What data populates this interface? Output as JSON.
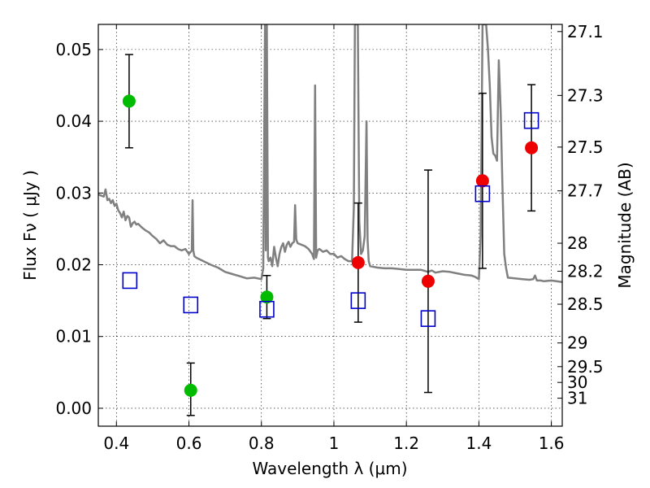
{
  "chart_data": {
    "type": "scatter",
    "xlabel": "Wavelength  λ (μm)",
    "ylabel": "Flux  Fν  ( μJy )",
    "ylabel_right": "Magnitude (AB)",
    "xlim": [
      0.35,
      1.63
    ],
    "ylim": [
      -0.0025,
      0.0535
    ],
    "grid": true,
    "x_ticks": [
      0.4,
      0.6,
      0.8,
      1.0,
      1.2,
      1.4,
      1.6
    ],
    "x_tick_labels": [
      "0.4",
      "0.6",
      "0.8",
      "1",
      "1.2",
      "1.4",
      "1.6"
    ],
    "y_ticks": [
      0.0,
      0.01,
      0.02,
      0.03,
      0.04,
      0.05
    ],
    "y_tick_labels": [
      "0.00",
      "0.01",
      "0.02",
      "0.03",
      "0.04",
      "0.05"
    ],
    "right_ticks": [
      {
        "label": "27.1",
        "flux": 0.0525
      },
      {
        "label": "27.3",
        "flux": 0.0436
      },
      {
        "label": "27.5",
        "flux": 0.0364
      },
      {
        "label": "27.7",
        "flux": 0.0303
      },
      {
        "label": "28",
        "flux": 0.023
      },
      {
        "label": "28.2",
        "flux": 0.0191
      },
      {
        "label": "28.5",
        "flux": 0.0145
      },
      {
        "label": "29",
        "flux": 0.0091
      },
      {
        "label": "29.5",
        "flux": 0.0058
      },
      {
        "label": "30",
        "flux": 0.0036
      },
      {
        "label": "31",
        "flux": 0.0014
      }
    ],
    "series": [
      {
        "color": "#00bb00",
        "marker": "circle",
        "points": [
          {
            "x": 0.435,
            "y": 0.0428,
            "err_lo": 0.0065,
            "err_hi": 0.0065
          },
          {
            "x": 0.605,
            "y": 0.0025,
            "err_lo": 0.0035,
            "err_hi": 0.0038
          },
          {
            "x": 0.815,
            "y": 0.0155,
            "err_lo": 0.003,
            "err_hi": 0.003
          }
        ]
      },
      {
        "color": "#ee0000",
        "marker": "circle",
        "points": [
          {
            "x": 1.067,
            "y": 0.0203,
            "err_lo": 0.0083,
            "err_hi": 0.0083
          },
          {
            "x": 1.26,
            "y": 0.0177,
            "err_lo": 0.0155,
            "err_hi": 0.0155
          },
          {
            "x": 1.41,
            "y": 0.0317,
            "err_lo": 0.0122,
            "err_hi": 0.0122
          },
          {
            "x": 1.545,
            "y": 0.0363,
            "err_lo": 0.0088,
            "err_hi": 0.0088
          }
        ]
      },
      {
        "color": "#0000cc",
        "marker": "open-square",
        "points": [
          {
            "x": 0.437,
            "y": 0.0178
          },
          {
            "x": 0.605,
            "y": 0.0144
          },
          {
            "x": 0.815,
            "y": 0.0138
          },
          {
            "x": 1.067,
            "y": 0.015
          },
          {
            "x": 1.26,
            "y": 0.0125
          },
          {
            "x": 1.41,
            "y": 0.0299
          },
          {
            "x": 1.545,
            "y": 0.0401
          }
        ]
      }
    ],
    "model_spectrum": {
      "color": "#808080",
      "x": [
        0.35,
        0.365,
        0.37,
        0.375,
        0.38,
        0.385,
        0.39,
        0.395,
        0.4,
        0.405,
        0.41,
        0.415,
        0.42,
        0.425,
        0.43,
        0.435,
        0.44,
        0.445,
        0.45,
        0.455,
        0.46,
        0.47,
        0.48,
        0.49,
        0.5,
        0.51,
        0.52,
        0.53,
        0.54,
        0.55,
        0.56,
        0.57,
        0.58,
        0.59,
        0.6,
        0.605,
        0.608,
        0.61,
        0.612,
        0.615,
        0.62,
        0.64,
        0.66,
        0.68,
        0.7,
        0.72,
        0.74,
        0.76,
        0.78,
        0.8,
        0.805,
        0.81,
        0.812,
        0.815,
        0.818,
        0.82,
        0.825,
        0.83,
        0.835,
        0.84,
        0.845,
        0.85,
        0.855,
        0.86,
        0.865,
        0.87,
        0.875,
        0.88,
        0.885,
        0.89,
        0.893,
        0.896,
        0.9,
        0.91,
        0.92,
        0.93,
        0.94,
        0.945,
        0.948,
        0.951,
        0.955,
        0.96,
        0.97,
        0.98,
        0.99,
        1.0,
        1.01,
        1.02,
        1.03,
        1.04,
        1.05,
        1.055,
        1.058,
        1.062,
        1.066,
        1.07,
        1.075,
        1.08,
        1.085,
        1.09,
        1.093,
        1.096,
        1.1,
        1.12,
        1.14,
        1.16,
        1.18,
        1.2,
        1.22,
        1.24,
        1.26,
        1.27,
        1.28,
        1.3,
        1.32,
        1.34,
        1.36,
        1.38,
        1.39,
        1.4,
        1.405,
        1.41,
        1.415,
        1.42,
        1.425,
        1.43,
        1.435,
        1.44,
        1.445,
        1.45,
        1.455,
        1.46,
        1.465,
        1.47,
        1.475,
        1.48,
        1.5,
        1.52,
        1.54,
        1.55,
        1.555,
        1.56,
        1.57,
        1.58,
        1.6,
        1.63
      ],
      "y": [
        0.0298,
        0.0295,
        0.0305,
        0.029,
        0.0292,
        0.0286,
        0.029,
        0.0282,
        0.0285,
        0.0276,
        0.0272,
        0.0266,
        0.0274,
        0.0262,
        0.0268,
        0.0266,
        0.0253,
        0.0258,
        0.026,
        0.0256,
        0.0257,
        0.0252,
        0.0248,
        0.0245,
        0.024,
        0.0236,
        0.023,
        0.0234,
        0.0228,
        0.0226,
        0.0226,
        0.0222,
        0.022,
        0.0222,
        0.0215,
        0.0218,
        0.022,
        0.029,
        0.022,
        0.0212,
        0.021,
        0.0205,
        0.02,
        0.0196,
        0.019,
        0.0187,
        0.0184,
        0.0181,
        0.0182,
        0.018,
        0.0195,
        0.0535,
        0.022,
        0.0535,
        0.021,
        0.0205,
        0.021,
        0.0198,
        0.0225,
        0.021,
        0.0198,
        0.0215,
        0.0225,
        0.023,
        0.0218,
        0.0228,
        0.0232,
        0.0225,
        0.023,
        0.0232,
        0.0283,
        0.0235,
        0.023,
        0.0228,
        0.0226,
        0.0222,
        0.0215,
        0.0208,
        0.045,
        0.021,
        0.022,
        0.0222,
        0.0218,
        0.022,
        0.0215,
        0.0215,
        0.021,
        0.0212,
        0.0208,
        0.0205,
        0.0205,
        0.028,
        0.0535,
        0.0535,
        0.0535,
        0.026,
        0.0215,
        0.022,
        0.024,
        0.04,
        0.0235,
        0.0205,
        0.0198,
        0.0196,
        0.0195,
        0.0195,
        0.0194,
        0.0193,
        0.0193,
        0.0193,
        0.019,
        0.0192,
        0.0189,
        0.0191,
        0.019,
        0.0188,
        0.0186,
        0.0185,
        0.0183,
        0.018,
        0.024,
        0.0535,
        0.0535,
        0.0535,
        0.05,
        0.045,
        0.0378,
        0.0355,
        0.0352,
        0.0345,
        0.0485,
        0.0415,
        0.031,
        0.0215,
        0.0195,
        0.0182,
        0.0181,
        0.018,
        0.0179,
        0.018,
        0.0185,
        0.0178,
        0.0178,
        0.0177,
        0.0178,
        0.0176
      ]
    }
  }
}
